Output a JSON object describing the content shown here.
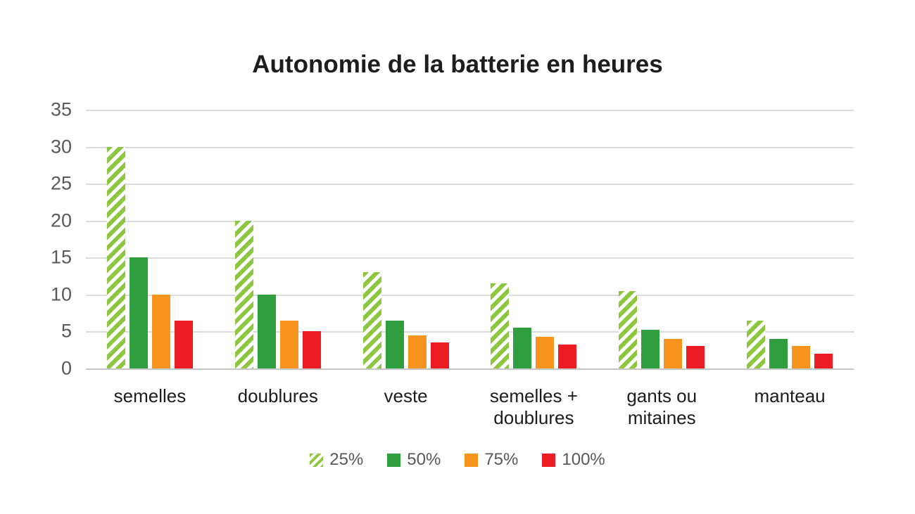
{
  "chart_data": {
    "type": "bar",
    "title": "Autonomie de la batterie en heures",
    "categories": [
      "semelles",
      "doublures",
      "veste",
      "semelles +\ndoublures",
      "gants ou\nmitaines",
      "manteau"
    ],
    "series": [
      {
        "name": "25%",
        "color": "#8DC63F",
        "pattern": "diagonal-stripes",
        "values": [
          30,
          20,
          13,
          11.5,
          10.5,
          6.5
        ]
      },
      {
        "name": "50%",
        "color": "#2E9E3E",
        "pattern": "solid",
        "values": [
          15,
          10,
          6.5,
          5.5,
          5.2,
          4
        ]
      },
      {
        "name": "75%",
        "color": "#F7941D",
        "pattern": "solid",
        "values": [
          10,
          6.5,
          4.5,
          4.3,
          4,
          3
        ]
      },
      {
        "name": "100%",
        "color": "#EC1C24",
        "pattern": "solid",
        "values": [
          6.5,
          5,
          3.5,
          3.2,
          3,
          2
        ]
      }
    ],
    "xlabel": "",
    "ylabel": "",
    "ylim": [
      0,
      35
    ],
    "yticks": [
      35,
      30,
      25,
      20,
      15,
      10,
      5,
      0
    ],
    "grid": true,
    "legend_position": "bottom",
    "colors": {
      "gridline": "#dcdcdc",
      "baseline": "#c6c6c6",
      "axis_text": "#58595b",
      "label_text": "#1d1d1b",
      "hatch_background": "#ffffff"
    }
  }
}
